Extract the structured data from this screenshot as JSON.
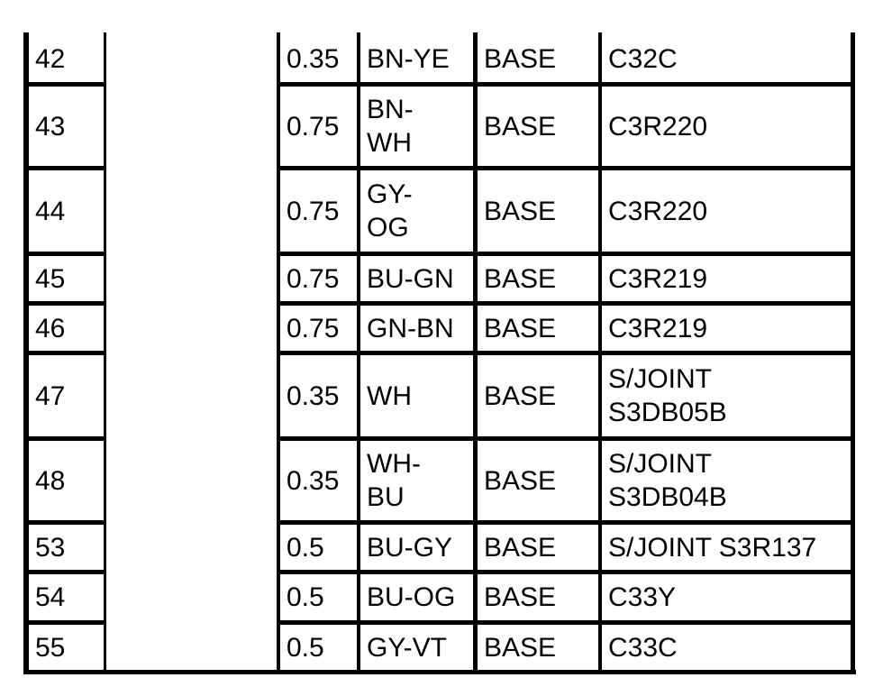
{
  "table": {
    "rows": [
      {
        "no": "42",
        "blank": "",
        "size": "0.35",
        "color": "BN-YE",
        "type": "BASE",
        "dest": "C32C"
      },
      {
        "no": "43",
        "blank": "",
        "size": "0.75",
        "color": "BN-\nWH",
        "type": "BASE",
        "dest": "C3R220"
      },
      {
        "no": "44",
        "blank": "",
        "size": "0.75",
        "color": "GY-\nOG",
        "type": "BASE",
        "dest": "C3R220"
      },
      {
        "no": "45",
        "blank": "",
        "size": "0.75",
        "color": "BU-GN",
        "type": "BASE",
        "dest": "C3R219"
      },
      {
        "no": "46",
        "blank": "",
        "size": "0.75",
        "color": "GN-BN",
        "type": "BASE",
        "dest": "C3R219"
      },
      {
        "no": "47",
        "blank": "",
        "size": "0.35",
        "color": "WH",
        "type": "BASE",
        "dest": "S/JOINT\nS3DB05B"
      },
      {
        "no": "48",
        "blank": "",
        "size": "0.35",
        "color": "WH-\nBU",
        "type": "BASE",
        "dest": "S/JOINT\nS3DB04B"
      },
      {
        "no": "53",
        "blank": "",
        "size": "0.5",
        "color": "BU-GY",
        "type": "BASE",
        "dest": "S/JOINT S3R137"
      },
      {
        "no": "54",
        "blank": "",
        "size": "0.5",
        "color": "BU-OG",
        "type": "BASE",
        "dest": "C33Y"
      },
      {
        "no": "55",
        "blank": "",
        "size": "0.5",
        "color": "GY-VT",
        "type": "BASE",
        "dest": "C33C"
      }
    ]
  }
}
